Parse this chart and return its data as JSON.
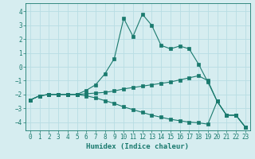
{
  "xlabel": "Humidex (Indice chaleur)",
  "ylabel": "",
  "background_color": "#d6edf0",
  "grid_color": "#b8dde3",
  "line_color": "#1a7a6e",
  "xlim": [
    -0.5,
    23.5
  ],
  "ylim": [
    -4.6,
    4.6
  ],
  "xticks": [
    0,
    1,
    2,
    3,
    4,
    5,
    6,
    7,
    8,
    9,
    10,
    11,
    12,
    13,
    14,
    15,
    16,
    17,
    18,
    19,
    20,
    21,
    22,
    23
  ],
  "yticks": [
    -4,
    -3,
    -2,
    -1,
    0,
    1,
    2,
    3,
    4
  ],
  "line1_x": [
    0,
    1,
    2,
    3,
    4,
    5,
    6,
    7,
    8,
    9,
    10,
    11,
    12,
    13,
    14,
    15,
    16,
    17,
    18,
    19,
    20,
    21,
    22,
    23
  ],
  "line1_y": [
    -2.4,
    -2.1,
    -2.0,
    -2.0,
    -2.0,
    -2.0,
    -1.7,
    -1.3,
    -0.5,
    0.6,
    3.5,
    2.2,
    3.8,
    3.0,
    1.55,
    1.3,
    1.5,
    1.3,
    0.2,
    -1.1,
    -2.5,
    -3.5,
    -3.5,
    -4.35
  ],
  "line2_x": [
    0,
    1,
    2,
    3,
    4,
    5,
    6,
    7,
    8,
    9,
    10,
    11,
    12,
    13,
    14,
    15,
    16,
    17,
    18,
    19,
    20,
    21,
    22,
    23
  ],
  "line2_y": [
    -2.4,
    -2.1,
    -2.0,
    -2.0,
    -2.0,
    -2.0,
    -1.95,
    -1.9,
    -1.85,
    -1.75,
    -1.6,
    -1.5,
    -1.4,
    -1.3,
    -1.2,
    -1.1,
    -0.95,
    -0.8,
    -0.65,
    -1.0,
    -2.5,
    -3.5,
    -3.5,
    -4.35
  ],
  "line3_x": [
    0,
    1,
    2,
    3,
    4,
    5,
    6,
    7,
    8,
    9,
    10,
    11,
    12,
    13,
    14,
    15,
    16,
    17,
    18,
    19,
    20,
    21,
    22,
    23
  ],
  "line3_y": [
    -2.4,
    -2.1,
    -2.0,
    -2.0,
    -2.0,
    -2.0,
    -2.1,
    -2.25,
    -2.45,
    -2.65,
    -2.9,
    -3.1,
    -3.3,
    -3.5,
    -3.65,
    -3.8,
    -3.9,
    -4.0,
    -4.05,
    -4.15,
    -2.5,
    -3.5,
    -3.5,
    -4.35
  ]
}
